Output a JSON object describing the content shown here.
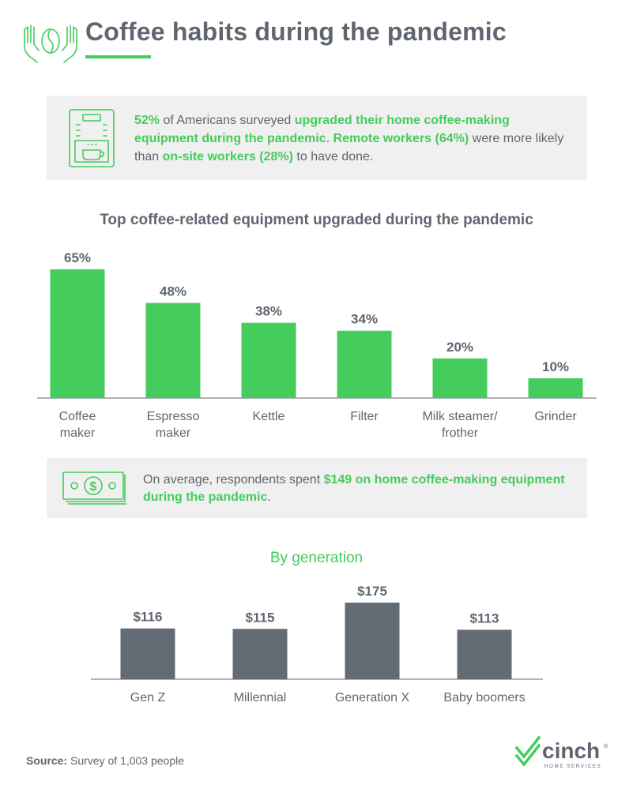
{
  "header": {
    "title": "Coffee habits during the pandemic",
    "icon": "hands-coffee-bean-icon"
  },
  "stat_box": {
    "icon": "coffee-machine-icon",
    "p1": "52%",
    "p2": " of Americans surveyed ",
    "p3": "upgraded their home coffee-making equipment during the pandemic",
    "p4": ". ",
    "p5": "Remote workers (64%)",
    "p6": " were more likely than ",
    "p7": "on-site workers (28%)",
    "p8": " to have done."
  },
  "spend_box": {
    "icon": "money-bills-icon",
    "p1": "On average, respondents spent ",
    "p2": "$149 on home coffee-making equipment during the pandemic",
    "p3": "."
  },
  "generation_title": "By generation",
  "chart_data": [
    {
      "type": "bar",
      "title": "Top coffee-related equipment upgraded during the pandemic",
      "categories": [
        [
          "Coffee",
          "maker"
        ],
        [
          "Espresso",
          "maker"
        ],
        [
          "Kettle"
        ],
        [
          "Filter"
        ],
        [
          "Milk steamer/",
          "frother"
        ],
        [
          "Grinder"
        ]
      ],
      "values": [
        65,
        48,
        38,
        34,
        20,
        10
      ],
      "value_labels": [
        "65%",
        "48%",
        "38%",
        "34%",
        "20%",
        "10%"
      ],
      "ylim": [
        0,
        65
      ],
      "grid": false,
      "color": "#44cc5c"
    },
    {
      "type": "bar",
      "title": "By generation",
      "categories": [
        "Gen Z",
        "Millennial",
        "Generation X",
        "Baby boomers"
      ],
      "values": [
        116,
        115,
        175,
        113
      ],
      "value_labels": [
        "$116",
        "$115",
        "$175",
        "$113"
      ],
      "ylim": [
        0,
        175
      ],
      "grid": false,
      "color": "#636b75"
    }
  ],
  "footer": {
    "source_label": "Source:",
    "source_text": " Survey of 1,003 people",
    "logo_text": "cinch",
    "logo_sub": "HOME SERVICES",
    "logo_mark": "®"
  },
  "colors": {
    "accent": "#44cc5c",
    "text": "#5f6670",
    "panel": "#f0f0f0",
    "bar_gray": "#636b75"
  }
}
